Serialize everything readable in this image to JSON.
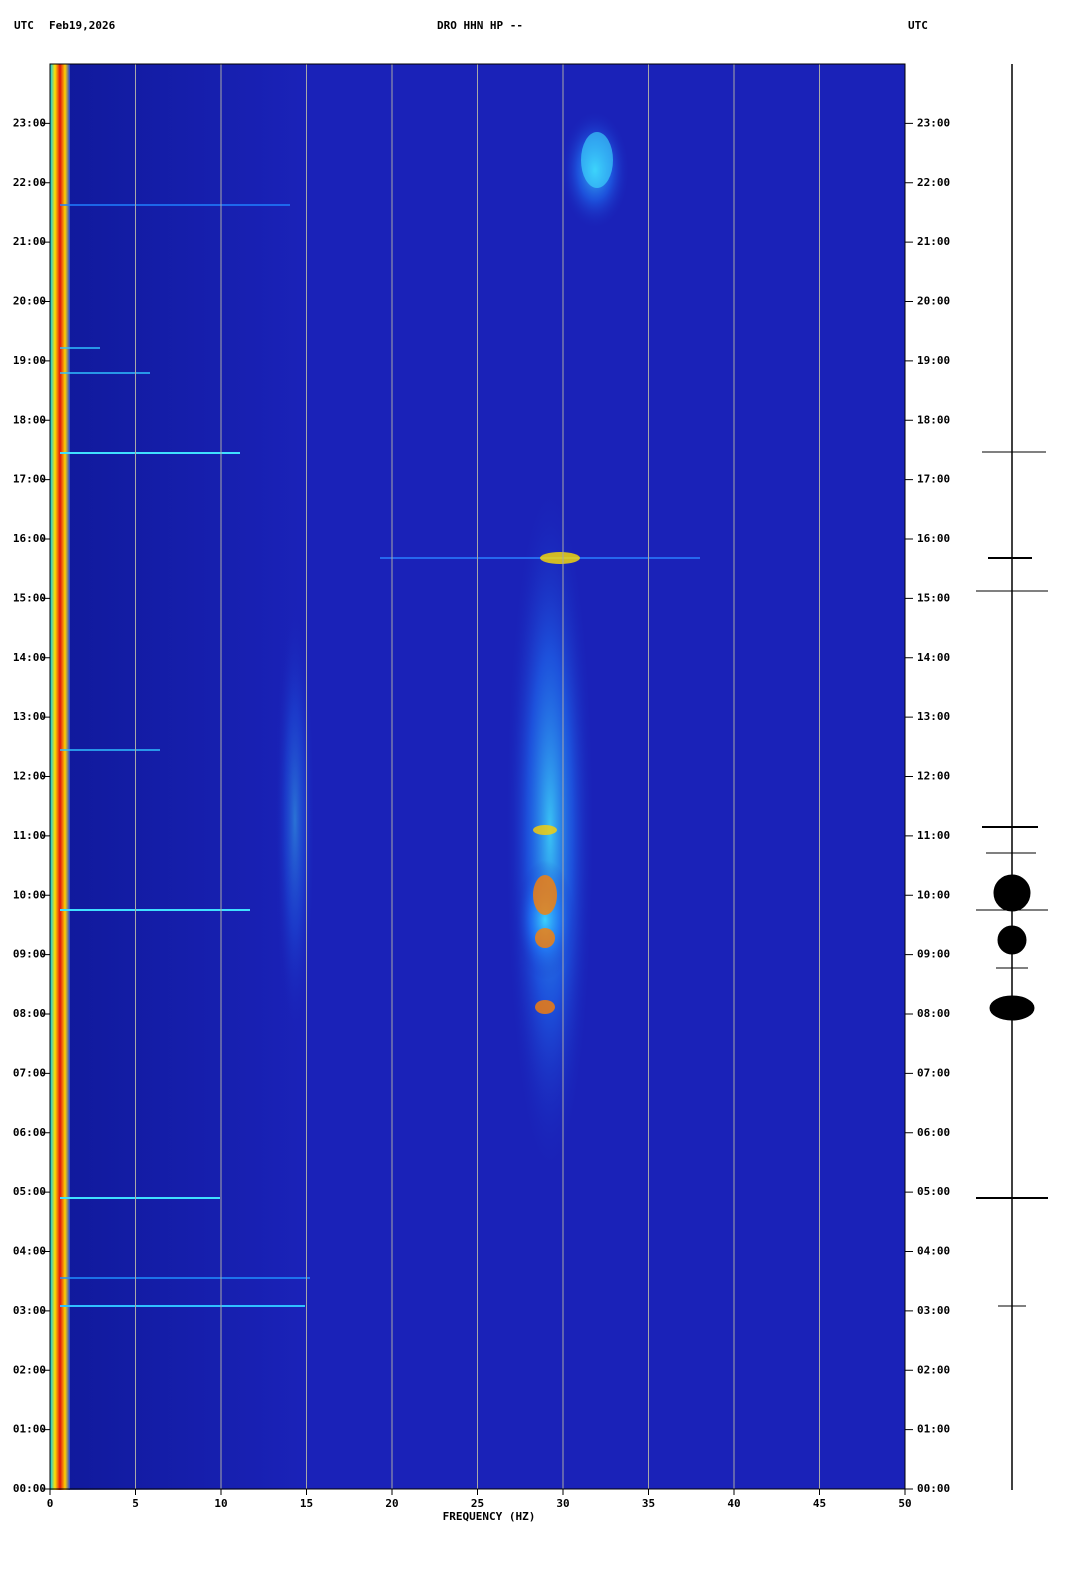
{
  "chart_data": {
    "type": "spectrogram",
    "header_left_zone": "UTC",
    "date": "Feb19,2026",
    "title": "DRO HHN HP --",
    "header_right_zone": "UTC",
    "xlabel": "FREQUENCY (HZ)",
    "xlim": [
      0,
      50
    ],
    "xticks": [
      0,
      5,
      10,
      15,
      20,
      25,
      30,
      35,
      40,
      45,
      50
    ],
    "ylim": [
      0,
      24
    ],
    "yticks": [
      {
        "value": 0,
        "label": "00:00"
      },
      {
        "value": 1,
        "label": "01:00"
      },
      {
        "value": 2,
        "label": "02:00"
      },
      {
        "value": 3,
        "label": "03:00"
      },
      {
        "value": 4,
        "label": "04:00"
      },
      {
        "value": 5,
        "label": "05:00"
      },
      {
        "value": 6,
        "label": "06:00"
      },
      {
        "value": 7,
        "label": "07:00"
      },
      {
        "value": 8,
        "label": "08:00"
      },
      {
        "value": 9,
        "label": "09:00"
      },
      {
        "value": 10,
        "label": "10:00"
      },
      {
        "value": 11,
        "label": "11:00"
      },
      {
        "value": 12,
        "label": "12:00"
      },
      {
        "value": 13,
        "label": "13:00"
      },
      {
        "value": 14,
        "label": "14:00"
      },
      {
        "value": 15,
        "label": "15:00"
      },
      {
        "value": 16,
        "label": "16:00"
      },
      {
        "value": 17,
        "label": "17:00"
      },
      {
        "value": 18,
        "label": "18:00"
      },
      {
        "value": 19,
        "label": "19:00"
      },
      {
        "value": 20,
        "label": "20:00"
      },
      {
        "value": 21,
        "label": "21:00"
      },
      {
        "value": 22,
        "label": "22:00"
      },
      {
        "value": 23,
        "label": "23:00"
      }
    ],
    "grid": true,
    "grid_color": "#a8a8a8",
    "background_color": "#1a22b8"
  }
}
